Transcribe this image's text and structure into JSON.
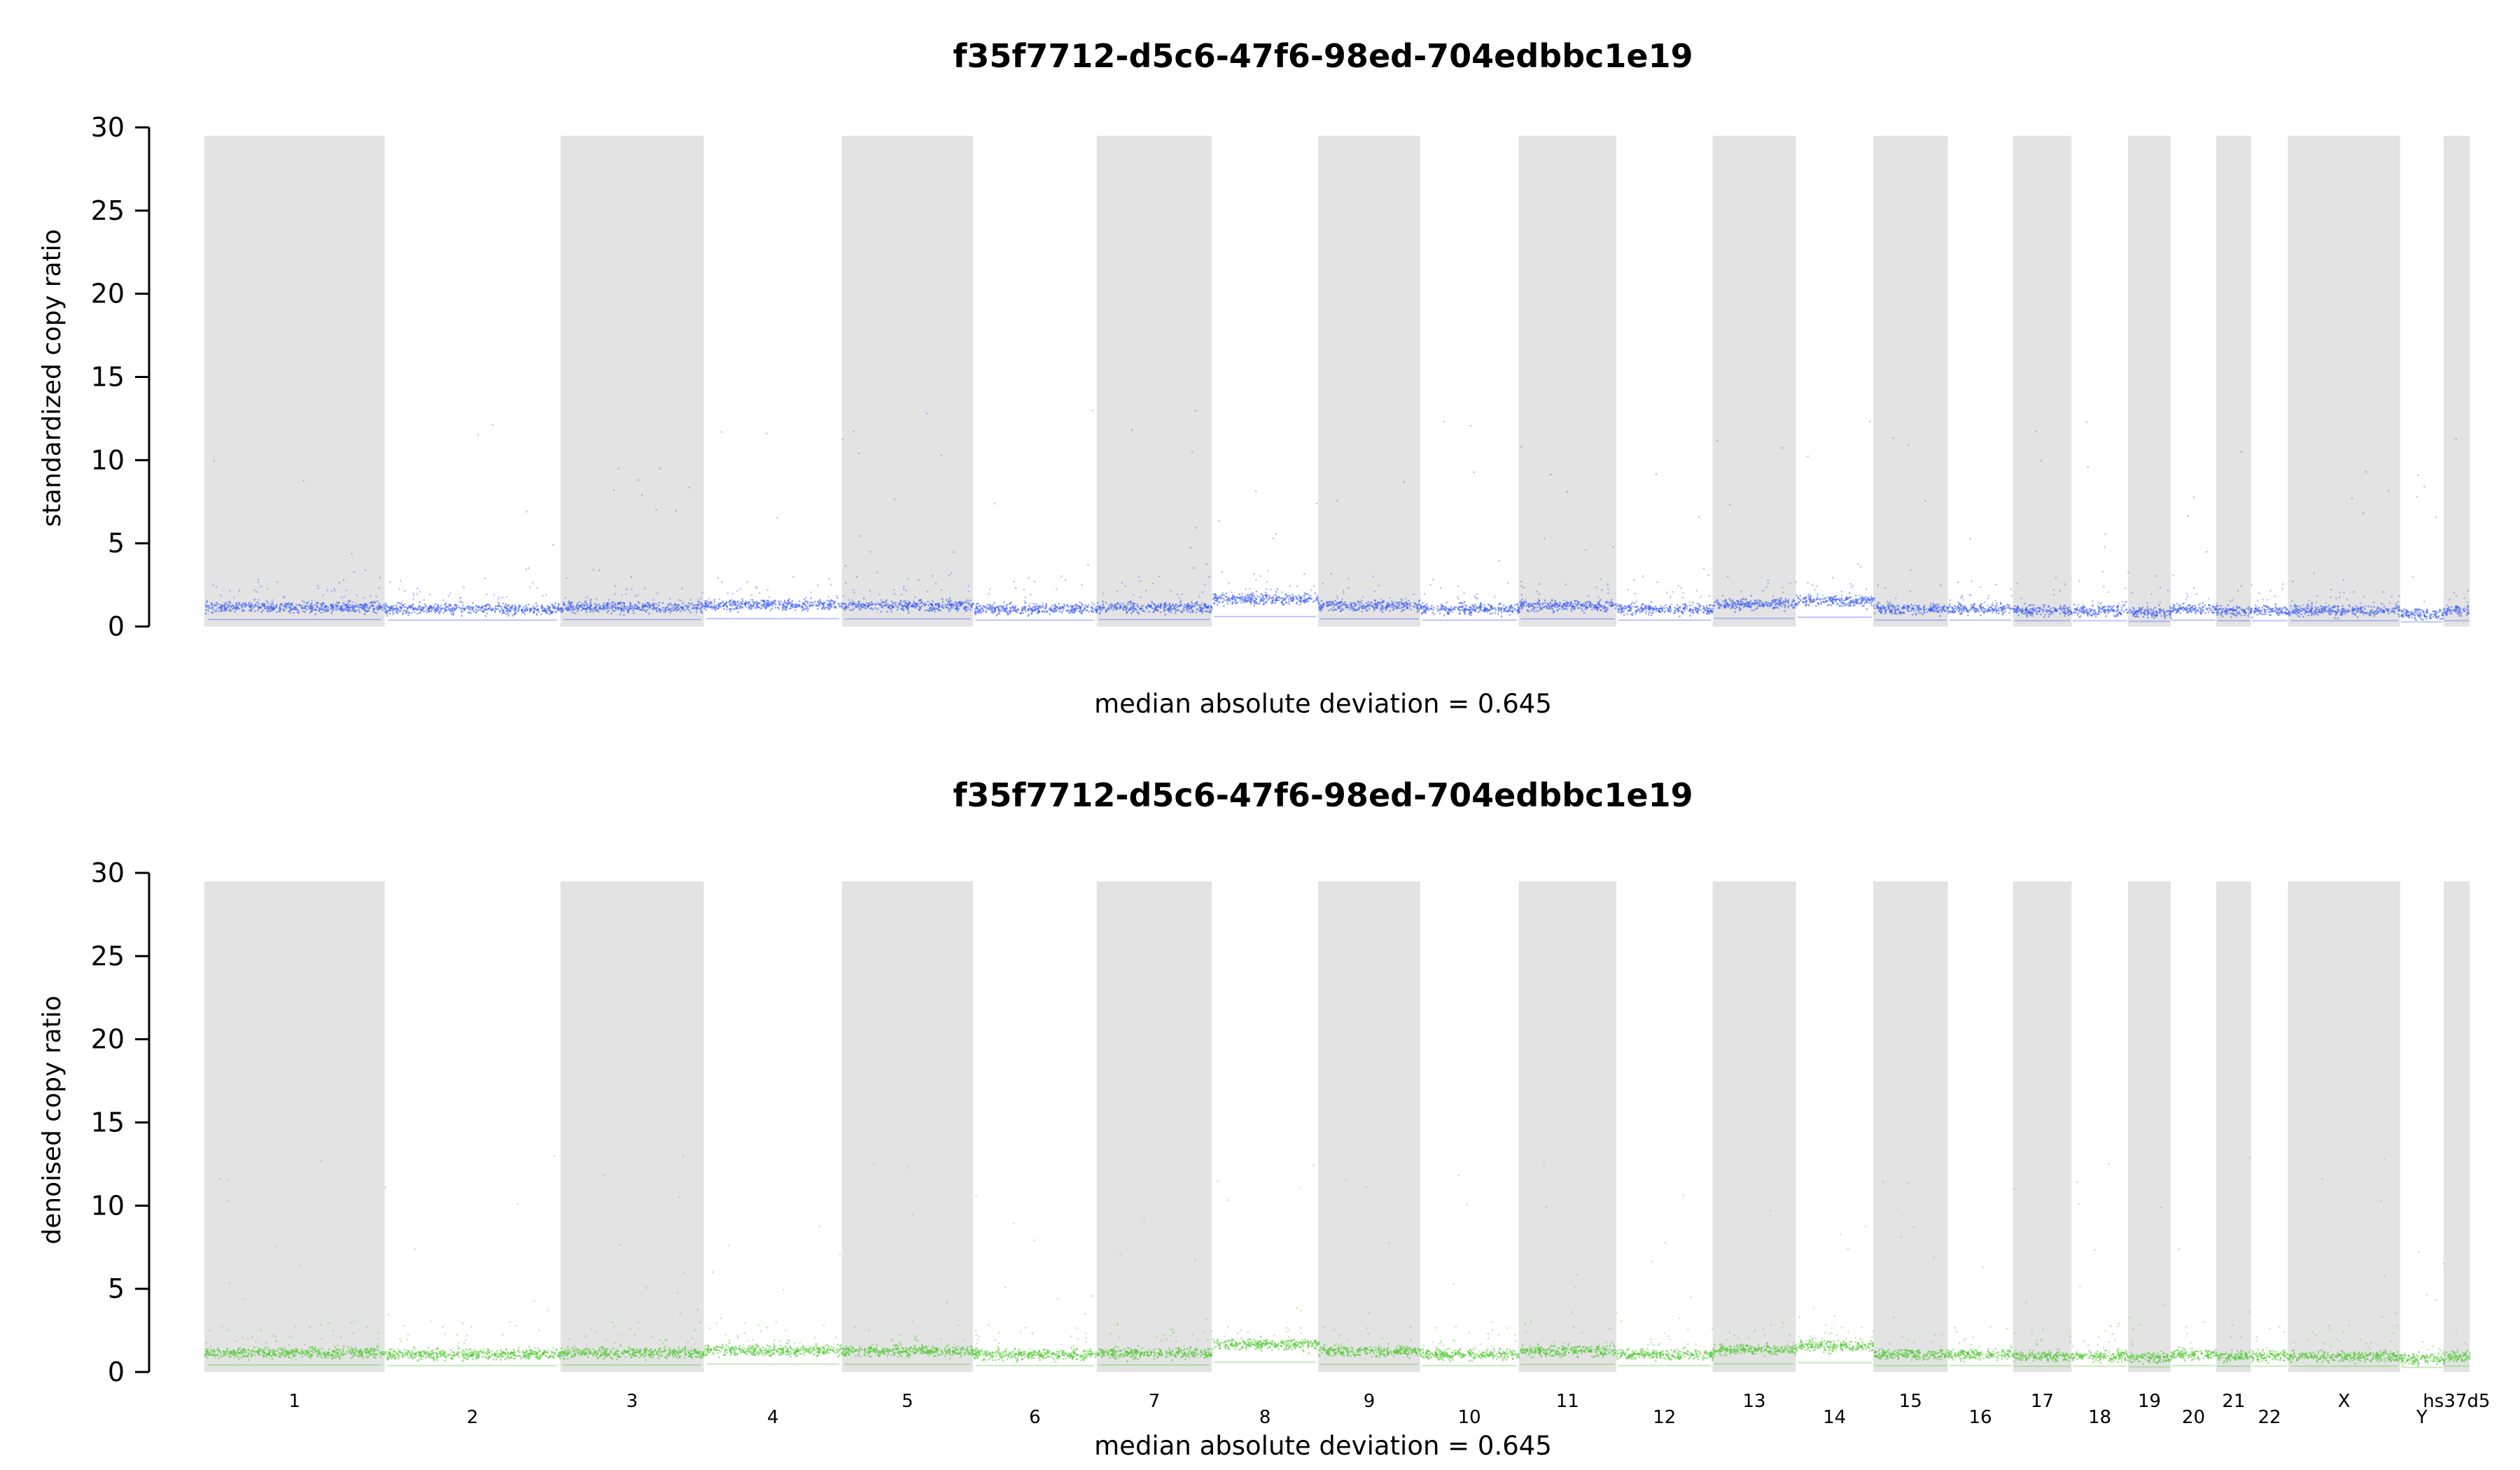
{
  "chart_data": [
    {
      "type": "scatter",
      "title": "f35f7712-d5c6-47f6-98ed-704edbbc1e19",
      "ylabel": "standardized copy ratio",
      "xlabel": "median absolute deviation = 0.645",
      "ylim": [
        0,
        30
      ],
      "yticks": [
        0,
        5,
        10,
        15,
        20,
        25,
        30
      ],
      "point_color": "#3b5bf0",
      "band_color": "#e3e3e3",
      "chromosome_labels_shown": false,
      "chromosomes": [
        {
          "name": "1",
          "start": 0.0,
          "end": 249.0,
          "median": 1.2,
          "shaded": true,
          "label_row": 0
        },
        {
          "name": "2",
          "start": 249.0,
          "end": 492.0,
          "median": 1.1,
          "shaded": false,
          "label_row": 1
        },
        {
          "name": "3",
          "start": 492.0,
          "end": 690.0,
          "median": 1.2,
          "shaded": true,
          "label_row": 0
        },
        {
          "name": "4",
          "start": 690.0,
          "end": 881.0,
          "median": 1.35,
          "shaded": false,
          "label_row": 1
        },
        {
          "name": "5",
          "start": 881.0,
          "end": 1062.0,
          "median": 1.3,
          "shaded": true,
          "label_row": 0
        },
        {
          "name": "6",
          "start": 1062.0,
          "end": 1233.0,
          "median": 1.1,
          "shaded": false,
          "label_row": 1
        },
        {
          "name": "7",
          "start": 1233.0,
          "end": 1392.0,
          "median": 1.2,
          "shaded": true,
          "label_row": 0
        },
        {
          "name": "8",
          "start": 1392.0,
          "end": 1539.0,
          "median": 1.7,
          "shaded": false,
          "label_row": 1
        },
        {
          "name": "9",
          "start": 1539.0,
          "end": 1680.0,
          "median": 1.3,
          "shaded": true,
          "label_row": 0
        },
        {
          "name": "10",
          "start": 1680.0,
          "end": 1816.0,
          "median": 1.1,
          "shaded": false,
          "label_row": 1
        },
        {
          "name": "11",
          "start": 1816.0,
          "end": 1951.0,
          "median": 1.3,
          "shaded": true,
          "label_row": 0
        },
        {
          "name": "12",
          "start": 1951.0,
          "end": 2084.0,
          "median": 1.1,
          "shaded": false,
          "label_row": 1
        },
        {
          "name": "13",
          "start": 2084.0,
          "end": 2199.0,
          "median": 1.4,
          "shaded": true,
          "label_row": 0
        },
        {
          "name": "14",
          "start": 2199.0,
          "end": 2306.0,
          "median": 1.6,
          "shaded": false,
          "label_row": 1
        },
        {
          "name": "15",
          "start": 2306.0,
          "end": 2409.0,
          "median": 1.1,
          "shaded": true,
          "label_row": 0
        },
        {
          "name": "16",
          "start": 2409.0,
          "end": 2499.0,
          "median": 1.1,
          "shaded": false,
          "label_row": 1
        },
        {
          "name": "17",
          "start": 2499.0,
          "end": 2580.0,
          "median": 1.0,
          "shaded": true,
          "label_row": 0
        },
        {
          "name": "18",
          "start": 2580.0,
          "end": 2658.0,
          "median": 1.0,
          "shaded": false,
          "label_row": 1
        },
        {
          "name": "19",
          "start": 2658.0,
          "end": 2717.0,
          "median": 0.9,
          "shaded": true,
          "label_row": 0
        },
        {
          "name": "20",
          "start": 2717.0,
          "end": 2780.0,
          "median": 1.1,
          "shaded": false,
          "label_row": 1
        },
        {
          "name": "21",
          "start": 2780.0,
          "end": 2828.0,
          "median": 1.0,
          "shaded": true,
          "label_row": 0
        },
        {
          "name": "22",
          "start": 2828.0,
          "end": 2879.0,
          "median": 1.0,
          "shaded": false,
          "label_row": 1
        },
        {
          "name": "X",
          "start": 2879.0,
          "end": 3034.0,
          "median": 1.0,
          "shaded": true,
          "label_row": 0
        },
        {
          "name": "Y",
          "start": 3034.0,
          "end": 3094.0,
          "median": 0.8,
          "shaded": false,
          "label_row": 1
        },
        {
          "name": "hs37d5",
          "start": 3094.0,
          "end": 3130.0,
          "median": 1.0,
          "shaded": true,
          "label_row": 0
        }
      ]
    },
    {
      "type": "scatter",
      "title": "f35f7712-d5c6-47f6-98ed-704edbbc1e19",
      "ylabel": "denoised copy ratio",
      "xlabel": "median absolute deviation = 0.645",
      "ylim": [
        0,
        30
      ],
      "yticks": [
        0,
        5,
        10,
        15,
        20,
        25,
        30
      ],
      "point_color": "#4fc92f",
      "band_color": "#e3e3e3",
      "chromosome_labels_shown": true,
      "chromosomes": [
        {
          "name": "1",
          "start": 0.0,
          "end": 249.0,
          "median": 1.2,
          "shaded": true,
          "label_row": 0
        },
        {
          "name": "2",
          "start": 249.0,
          "end": 492.0,
          "median": 1.1,
          "shaded": false,
          "label_row": 1
        },
        {
          "name": "3",
          "start": 492.0,
          "end": 690.0,
          "median": 1.2,
          "shaded": true,
          "label_row": 0
        },
        {
          "name": "4",
          "start": 690.0,
          "end": 881.0,
          "median": 1.35,
          "shaded": false,
          "label_row": 1
        },
        {
          "name": "5",
          "start": 881.0,
          "end": 1062.0,
          "median": 1.3,
          "shaded": true,
          "label_row": 0
        },
        {
          "name": "6",
          "start": 1062.0,
          "end": 1233.0,
          "median": 1.1,
          "shaded": false,
          "label_row": 1
        },
        {
          "name": "7",
          "start": 1233.0,
          "end": 1392.0,
          "median": 1.2,
          "shaded": true,
          "label_row": 0
        },
        {
          "name": "8",
          "start": 1392.0,
          "end": 1539.0,
          "median": 1.7,
          "shaded": false,
          "label_row": 1
        },
        {
          "name": "9",
          "start": 1539.0,
          "end": 1680.0,
          "median": 1.3,
          "shaded": true,
          "label_row": 0
        },
        {
          "name": "10",
          "start": 1680.0,
          "end": 1816.0,
          "median": 1.1,
          "shaded": false,
          "label_row": 1
        },
        {
          "name": "11",
          "start": 1816.0,
          "end": 1951.0,
          "median": 1.3,
          "shaded": true,
          "label_row": 0
        },
        {
          "name": "12",
          "start": 1951.0,
          "end": 2084.0,
          "median": 1.1,
          "shaded": false,
          "label_row": 1
        },
        {
          "name": "13",
          "start": 2084.0,
          "end": 2199.0,
          "median": 1.4,
          "shaded": true,
          "label_row": 0
        },
        {
          "name": "14",
          "start": 2199.0,
          "end": 2306.0,
          "median": 1.6,
          "shaded": false,
          "label_row": 1
        },
        {
          "name": "15",
          "start": 2306.0,
          "end": 2409.0,
          "median": 1.1,
          "shaded": true,
          "label_row": 0
        },
        {
          "name": "16",
          "start": 2409.0,
          "end": 2499.0,
          "median": 1.1,
          "shaded": false,
          "label_row": 1
        },
        {
          "name": "17",
          "start": 2499.0,
          "end": 2580.0,
          "median": 1.0,
          "shaded": true,
          "label_row": 0
        },
        {
          "name": "18",
          "start": 2580.0,
          "end": 2658.0,
          "median": 1.0,
          "shaded": false,
          "label_row": 1
        },
        {
          "name": "19",
          "start": 2658.0,
          "end": 2717.0,
          "median": 0.9,
          "shaded": true,
          "label_row": 0
        },
        {
          "name": "20",
          "start": 2717.0,
          "end": 2780.0,
          "median": 1.1,
          "shaded": false,
          "label_row": 1
        },
        {
          "name": "21",
          "start": 2780.0,
          "end": 2828.0,
          "median": 1.0,
          "shaded": true,
          "label_row": 0
        },
        {
          "name": "22",
          "start": 2828.0,
          "end": 2879.0,
          "median": 1.0,
          "shaded": false,
          "label_row": 1
        },
        {
          "name": "X",
          "start": 2879.0,
          "end": 3034.0,
          "median": 1.0,
          "shaded": true,
          "label_row": 0
        },
        {
          "name": "Y",
          "start": 3034.0,
          "end": 3094.0,
          "median": 0.8,
          "shaded": false,
          "label_row": 1
        },
        {
          "name": "hs37d5",
          "start": 3094.0,
          "end": 3130.0,
          "median": 1.0,
          "shaded": true,
          "label_row": 0
        }
      ]
    }
  ]
}
